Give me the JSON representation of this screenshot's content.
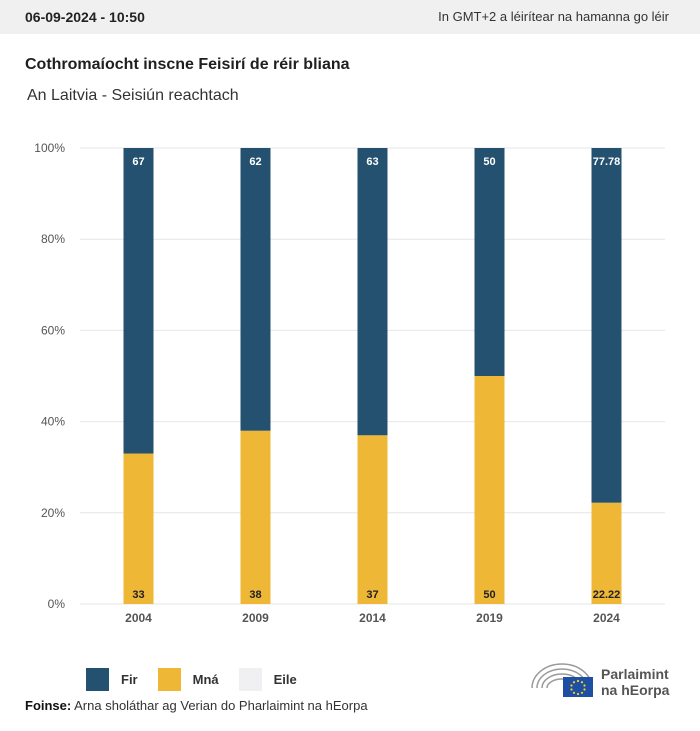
{
  "header": {
    "date": "06-09-2024 - 10:50",
    "timezone_note": "In GMT+2 a léirítear na hamanna go léir"
  },
  "colors": {
    "men": "#24516f",
    "women": "#eeb736",
    "other": "#f0f0f2",
    "grid": "#e6e6e6"
  },
  "chart_data": {
    "type": "bar",
    "stacked": true,
    "title": "Cothromaíocht inscne Feisirí de réir bliana",
    "subtitle": "An Laitvia - Seisiún reachtach",
    "categories": [
      "2004",
      "2009",
      "2014",
      "2019",
      "2024"
    ],
    "series": [
      {
        "name": "Fir",
        "values": [
          67,
          62,
          63,
          50,
          77.78
        ]
      },
      {
        "name": "Mná",
        "values": [
          33,
          38,
          37,
          50,
          22.22
        ]
      },
      {
        "name": "Eile",
        "values": [
          0,
          0,
          0,
          0,
          0
        ]
      }
    ],
    "data_labels": {
      "Fir": [
        "67",
        "62",
        "63",
        "50",
        "77.78"
      ],
      "Mná": [
        "33",
        "38",
        "37",
        "50",
        "22.22"
      ]
    },
    "ylim": [
      0,
      100
    ],
    "yticks": [
      "0%",
      "20%",
      "40%",
      "60%",
      "80%",
      "100%"
    ],
    "grid": true,
    "legend_position": "bottom-left"
  },
  "legend": [
    {
      "label": "Fir",
      "color": "#24516f"
    },
    {
      "label": "Mná",
      "color": "#eeb736"
    },
    {
      "label": "Eile",
      "color": "#f0f0f2"
    }
  ],
  "source": {
    "label": "Foinse:",
    "text": "Arna sholáthar ag Verian do Pharlaimint na hEorpa"
  },
  "logo": {
    "line1": "Parlaimint",
    "line2": "na hEorpa"
  }
}
